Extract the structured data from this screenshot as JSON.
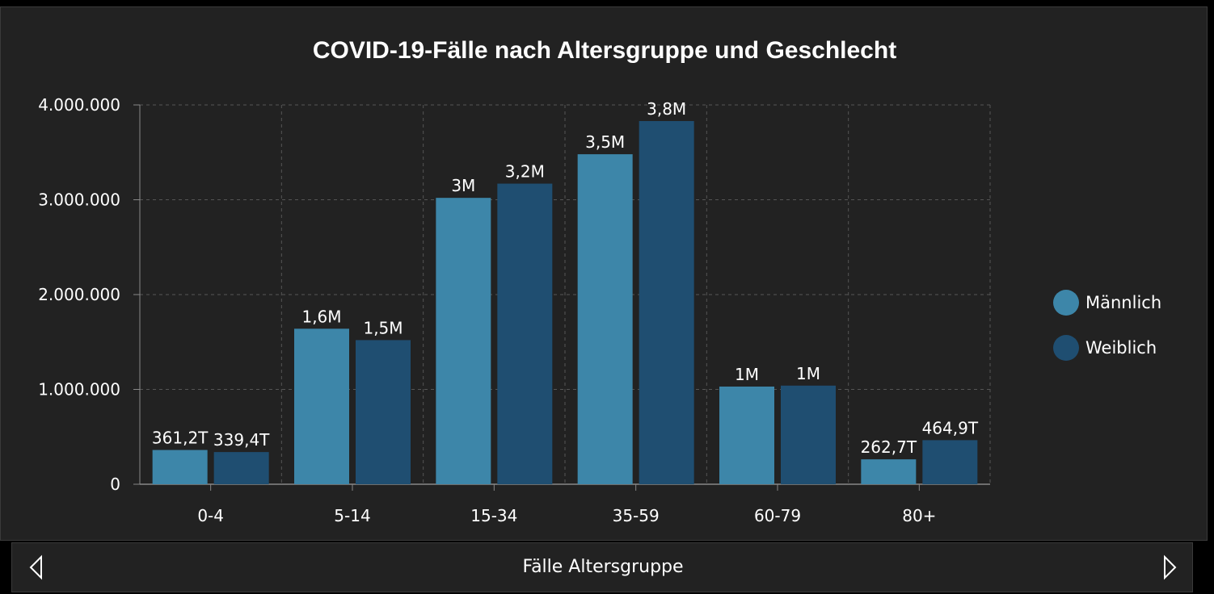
{
  "chart_data": {
    "type": "bar",
    "title": "COVID-19-Fälle nach Altersgruppe und Geschlecht",
    "categories": [
      "0-4",
      "5-14",
      "15-34",
      "35-59",
      "60-79",
      "80+"
    ],
    "series": [
      {
        "name": "Männlich",
        "color": "#3d86a9",
        "values": [
          361200,
          1640000,
          3020000,
          3480000,
          1030000,
          262700
        ],
        "labels": [
          "361,2T",
          "1,6M",
          "3M",
          "3,5M",
          "1M",
          "262,7T"
        ]
      },
      {
        "name": "Weiblich",
        "color": "#1f4e71",
        "values": [
          339400,
          1520000,
          3170000,
          3830000,
          1040000,
          464900
        ],
        "labels": [
          "339,4T",
          "1,5M",
          "3,2M",
          "3,8M",
          "1M",
          "464,9T"
        ]
      }
    ],
    "ylim": [
      0,
      4000000
    ],
    "yticks": [
      0,
      1000000,
      2000000,
      3000000,
      4000000
    ],
    "ytick_labels": [
      "0",
      "1.000.000",
      "2.000.000",
      "3.000.000",
      "4.000.000"
    ],
    "grid": true,
    "legend_position": "right"
  },
  "footer": {
    "label": "Fälle Altersgruppe",
    "prev_icon": "triangle-left-icon",
    "next_icon": "triangle-right-icon"
  }
}
